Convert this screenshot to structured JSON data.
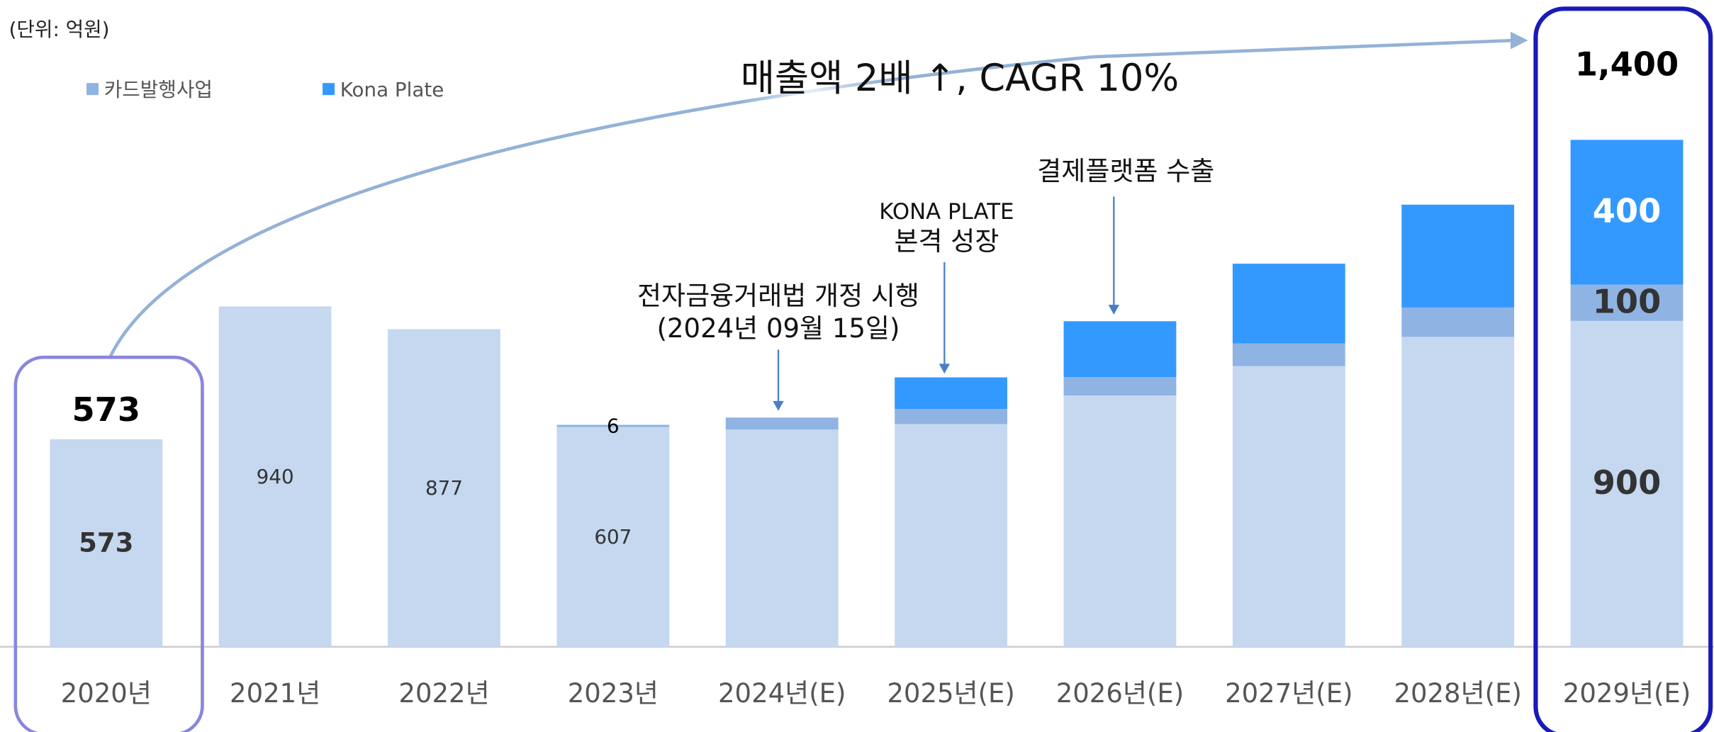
{
  "chart_data": {
    "type": "stacked-bar",
    "unit": "(단위: 억원)",
    "title": "매출액  2배 ↑, CAGR 10%",
    "categories": [
      "2020년",
      "2021년",
      "2022년",
      "2023년",
      "2024년(E)",
      "2025년(E)",
      "2026년(E)",
      "2027년(E)",
      "2028년(E)",
      "2029년(E)"
    ],
    "series": [
      {
        "color": "#c5d8f0",
        "values": [
          573,
          940,
          877,
          607,
          600,
          615,
          694,
          775,
          856,
          900
        ],
        "value_labels": [
          "573",
          "940",
          "877",
          "607",
          null,
          null,
          null,
          null,
          null,
          "900"
        ]
      },
      {
        "name": "카드발행사업",
        "color": "#8fb3e3",
        "values": [
          0,
          0,
          0,
          6,
          33,
          42,
          51,
          63,
          81,
          100
        ],
        "value_labels": [
          null,
          null,
          null,
          "6",
          null,
          null,
          null,
          null,
          null,
          "100"
        ]
      },
      {
        "name": "Kona Plate",
        "color": "#3399ff",
        "values": [
          0,
          0,
          0,
          0,
          0,
          87,
          154,
          220,
          284,
          400
        ],
        "value_labels": [
          null,
          null,
          null,
          null,
          null,
          null,
          null,
          null,
          null,
          "400"
        ]
      }
    ],
    "total_labels": [
      "573",
      null,
      null,
      null,
      null,
      null,
      null,
      null,
      null,
      "1,400"
    ],
    "callouts": [
      {
        "lines": [
          "전자금융거래법 개정 시행",
          "(2024년 09월 15일)"
        ]
      },
      {
        "lines": [
          "KONA PLATE",
          "본격 성장"
        ]
      },
      {
        "lines": [
          "결제플랫폼 수출"
        ]
      }
    ],
    "ylim": [
      0,
      1400
    ]
  }
}
